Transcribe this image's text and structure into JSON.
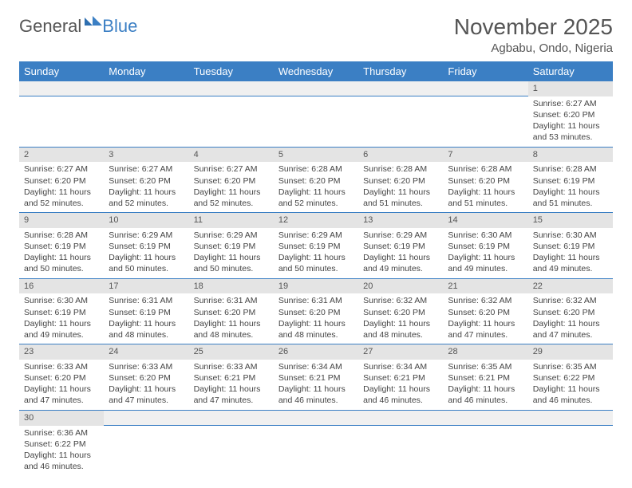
{
  "logo": {
    "main": "General",
    "accent": "Blue"
  },
  "title": "November 2025",
  "location": "Agbabu, Ondo, Nigeria",
  "colors": {
    "header_bg": "#3b7fc4",
    "header_text": "#ffffff",
    "daynum_bg": "#e4e4e4",
    "cell_border": "#3b7fc4",
    "text": "#444444",
    "title_text": "#555555"
  },
  "weekdays": [
    "Sunday",
    "Monday",
    "Tuesday",
    "Wednesday",
    "Thursday",
    "Friday",
    "Saturday"
  ],
  "first_day_index": 6,
  "days": [
    {
      "n": 1,
      "sr": "6:27 AM",
      "ss": "6:20 PM",
      "dl": "11 hours and 53 minutes."
    },
    {
      "n": 2,
      "sr": "6:27 AM",
      "ss": "6:20 PM",
      "dl": "11 hours and 52 minutes."
    },
    {
      "n": 3,
      "sr": "6:27 AM",
      "ss": "6:20 PM",
      "dl": "11 hours and 52 minutes."
    },
    {
      "n": 4,
      "sr": "6:27 AM",
      "ss": "6:20 PM",
      "dl": "11 hours and 52 minutes."
    },
    {
      "n": 5,
      "sr": "6:28 AM",
      "ss": "6:20 PM",
      "dl": "11 hours and 52 minutes."
    },
    {
      "n": 6,
      "sr": "6:28 AM",
      "ss": "6:20 PM",
      "dl": "11 hours and 51 minutes."
    },
    {
      "n": 7,
      "sr": "6:28 AM",
      "ss": "6:20 PM",
      "dl": "11 hours and 51 minutes."
    },
    {
      "n": 8,
      "sr": "6:28 AM",
      "ss": "6:19 PM",
      "dl": "11 hours and 51 minutes."
    },
    {
      "n": 9,
      "sr": "6:28 AM",
      "ss": "6:19 PM",
      "dl": "11 hours and 50 minutes."
    },
    {
      "n": 10,
      "sr": "6:29 AM",
      "ss": "6:19 PM",
      "dl": "11 hours and 50 minutes."
    },
    {
      "n": 11,
      "sr": "6:29 AM",
      "ss": "6:19 PM",
      "dl": "11 hours and 50 minutes."
    },
    {
      "n": 12,
      "sr": "6:29 AM",
      "ss": "6:19 PM",
      "dl": "11 hours and 50 minutes."
    },
    {
      "n": 13,
      "sr": "6:29 AM",
      "ss": "6:19 PM",
      "dl": "11 hours and 49 minutes."
    },
    {
      "n": 14,
      "sr": "6:30 AM",
      "ss": "6:19 PM",
      "dl": "11 hours and 49 minutes."
    },
    {
      "n": 15,
      "sr": "6:30 AM",
      "ss": "6:19 PM",
      "dl": "11 hours and 49 minutes."
    },
    {
      "n": 16,
      "sr": "6:30 AM",
      "ss": "6:19 PM",
      "dl": "11 hours and 49 minutes."
    },
    {
      "n": 17,
      "sr": "6:31 AM",
      "ss": "6:19 PM",
      "dl": "11 hours and 48 minutes."
    },
    {
      "n": 18,
      "sr": "6:31 AM",
      "ss": "6:20 PM",
      "dl": "11 hours and 48 minutes."
    },
    {
      "n": 19,
      "sr": "6:31 AM",
      "ss": "6:20 PM",
      "dl": "11 hours and 48 minutes."
    },
    {
      "n": 20,
      "sr": "6:32 AM",
      "ss": "6:20 PM",
      "dl": "11 hours and 48 minutes."
    },
    {
      "n": 21,
      "sr": "6:32 AM",
      "ss": "6:20 PM",
      "dl": "11 hours and 47 minutes."
    },
    {
      "n": 22,
      "sr": "6:32 AM",
      "ss": "6:20 PM",
      "dl": "11 hours and 47 minutes."
    },
    {
      "n": 23,
      "sr": "6:33 AM",
      "ss": "6:20 PM",
      "dl": "11 hours and 47 minutes."
    },
    {
      "n": 24,
      "sr": "6:33 AM",
      "ss": "6:20 PM",
      "dl": "11 hours and 47 minutes."
    },
    {
      "n": 25,
      "sr": "6:33 AM",
      "ss": "6:21 PM",
      "dl": "11 hours and 47 minutes."
    },
    {
      "n": 26,
      "sr": "6:34 AM",
      "ss": "6:21 PM",
      "dl": "11 hours and 46 minutes."
    },
    {
      "n": 27,
      "sr": "6:34 AM",
      "ss": "6:21 PM",
      "dl": "11 hours and 46 minutes."
    },
    {
      "n": 28,
      "sr": "6:35 AM",
      "ss": "6:21 PM",
      "dl": "11 hours and 46 minutes."
    },
    {
      "n": 29,
      "sr": "6:35 AM",
      "ss": "6:22 PM",
      "dl": "11 hours and 46 minutes."
    },
    {
      "n": 30,
      "sr": "6:36 AM",
      "ss": "6:22 PM",
      "dl": "11 hours and 46 minutes."
    }
  ],
  "labels": {
    "sunrise": "Sunrise:",
    "sunset": "Sunset:",
    "daylight": "Daylight:"
  }
}
